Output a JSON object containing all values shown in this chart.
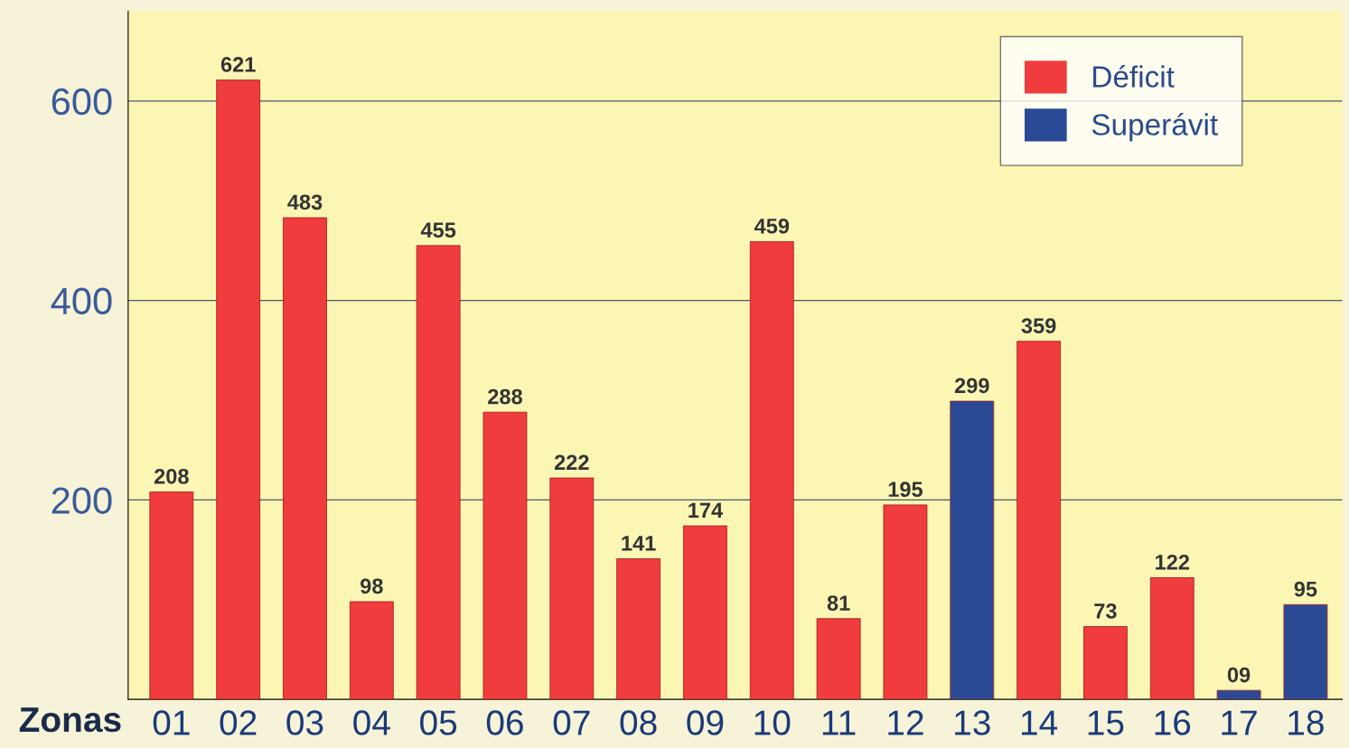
{
  "chart_data": {
    "type": "bar",
    "xlabel": "Zonas",
    "categories": [
      "01",
      "02",
      "03",
      "04",
      "05",
      "06",
      "07",
      "08",
      "09",
      "10",
      "11",
      "12",
      "13",
      "14",
      "15",
      "16",
      "17",
      "18"
    ],
    "series": [
      {
        "name": "Déficit",
        "color": "#f03c3c",
        "values": [
          208,
          621,
          483,
          98,
          455,
          288,
          222,
          141,
          174,
          459,
          81,
          195,
          null,
          359,
          73,
          122,
          null,
          null
        ]
      },
      {
        "name": "Superávit",
        "color": "#2b4a96",
        "values": [
          null,
          null,
          null,
          null,
          null,
          null,
          null,
          null,
          null,
          null,
          null,
          null,
          299,
          null,
          null,
          null,
          9,
          95
        ],
        "value_labels": [
          null,
          null,
          null,
          null,
          null,
          null,
          null,
          null,
          null,
          null,
          null,
          null,
          "299",
          null,
          null,
          null,
          "09",
          "95"
        ]
      }
    ],
    "ylim": [
      0,
      690
    ],
    "yticks": [
      200,
      400,
      600
    ],
    "grid": "y",
    "legend": "top right",
    "data_labels": true
  }
}
